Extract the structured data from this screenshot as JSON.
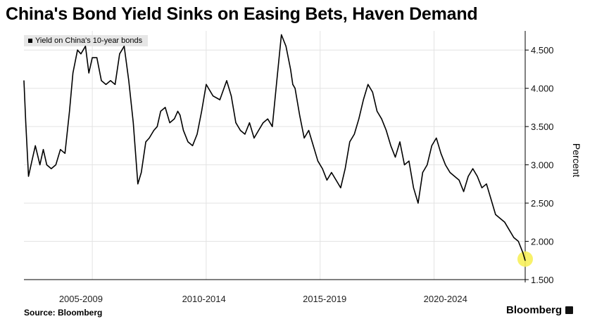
{
  "title": "China's Bond Yield Sinks on Easing Bets, Haven Demand",
  "source": "Source: Bloomberg",
  "brand": "Bloomberg",
  "colors": {
    "line": "#000000",
    "grid": "#e3e3e3",
    "highlight": "#f7ef5a"
  },
  "chart_data": {
    "type": "line",
    "title": "China's Bond Yield Sinks on Easing Bets, Haven Demand",
    "ylabel": "Percent",
    "ylim": [
      1.5,
      4.75
    ],
    "yticks": [
      "4.500",
      "4.000",
      "3.500",
      "3.000",
      "2.500",
      "2.000",
      "1.500"
    ],
    "ytick_values": [
      4.5,
      4.0,
      3.5,
      3.0,
      2.5,
      2.0,
      1.5
    ],
    "xlim": [
      2002.0,
      2024.0
    ],
    "x_period_labels": [
      "2005-2009",
      "2010-2014",
      "2015-2019",
      "2020-2024"
    ],
    "x_period_centers": [
      2004.5,
      2009.9,
      2015.2,
      2020.5
    ],
    "grid": true,
    "legend_position": "top-left",
    "highlight_last_point": true,
    "series": [
      {
        "name": "Yield on China's 10-year bonds",
        "x": [
          2002.0,
          2002.08,
          2002.2,
          2002.35,
          2002.5,
          2002.7,
          2002.85,
          2003.0,
          2003.2,
          2003.4,
          2003.6,
          2003.8,
          2004.0,
          2004.15,
          2004.35,
          2004.5,
          2004.7,
          2004.85,
          2005.0,
          2005.2,
          2005.4,
          2005.6,
          2005.8,
          2006.0,
          2006.2,
          2006.4,
          2006.6,
          2006.8,
          2007.0,
          2007.15,
          2007.35,
          2007.5,
          2007.7,
          2007.85,
          2008.0,
          2008.2,
          2008.4,
          2008.6,
          2008.75,
          2008.85,
          2009.0,
          2009.2,
          2009.4,
          2009.6,
          2009.8,
          2010.0,
          2010.3,
          2010.6,
          2010.9,
          2011.1,
          2011.3,
          2011.5,
          2011.7,
          2011.9,
          2012.1,
          2012.3,
          2012.5,
          2012.7,
          2012.9,
          2013.1,
          2013.3,
          2013.5,
          2013.7,
          2013.8,
          2013.9,
          2014.1,
          2014.3,
          2014.5,
          2014.7,
          2014.9,
          2015.1,
          2015.3,
          2015.5,
          2015.7,
          2015.9,
          2016.1,
          2016.3,
          2016.5,
          2016.7,
          2016.9,
          2017.1,
          2017.3,
          2017.5,
          2017.7,
          2017.9,
          2018.1,
          2018.3,
          2018.5,
          2018.7,
          2018.9,
          2019.1,
          2019.3,
          2019.5,
          2019.7,
          2019.9,
          2020.1,
          2020.3,
          2020.5,
          2020.7,
          2020.9,
          2021.1,
          2021.3,
          2021.5,
          2021.7,
          2021.9,
          2022.1,
          2022.3,
          2022.5,
          2022.7,
          2022.9,
          2023.1,
          2023.3,
          2023.5,
          2023.7,
          2023.9,
          2024.0
        ],
        "values": [
          4.1,
          3.55,
          2.85,
          3.05,
          3.25,
          3.0,
          3.2,
          3.0,
          2.95,
          3.0,
          3.2,
          3.15,
          3.7,
          4.2,
          4.5,
          4.45,
          4.55,
          4.2,
          4.4,
          4.4,
          4.1,
          4.05,
          4.1,
          4.05,
          4.45,
          4.55,
          4.1,
          3.55,
          2.75,
          2.9,
          3.3,
          3.35,
          3.45,
          3.5,
          3.7,
          3.75,
          3.55,
          3.6,
          3.7,
          3.65,
          3.45,
          3.3,
          3.25,
          3.4,
          3.7,
          4.05,
          3.9,
          3.85,
          4.1,
          3.9,
          3.55,
          3.45,
          3.4,
          3.55,
          3.35,
          3.45,
          3.55,
          3.6,
          3.5,
          4.1,
          4.7,
          4.55,
          4.25,
          4.05,
          4.0,
          3.65,
          3.35,
          3.45,
          3.25,
          3.05,
          2.95,
          2.8,
          2.9,
          2.8,
          2.7,
          2.95,
          3.3,
          3.4,
          3.6,
          3.85,
          4.05,
          3.95,
          3.7,
          3.6,
          3.45,
          3.25,
          3.1,
          3.3,
          3.0,
          3.05,
          2.7,
          2.5,
          2.9,
          3.0,
          3.25,
          3.35,
          3.15,
          3.0,
          2.9,
          2.85,
          2.8,
          2.65,
          2.85,
          2.95,
          2.85,
          2.7,
          2.75,
          2.55,
          2.35,
          2.3,
          2.25,
          2.15,
          2.05,
          2.0,
          1.85,
          1.75
        ]
      }
    ]
  }
}
